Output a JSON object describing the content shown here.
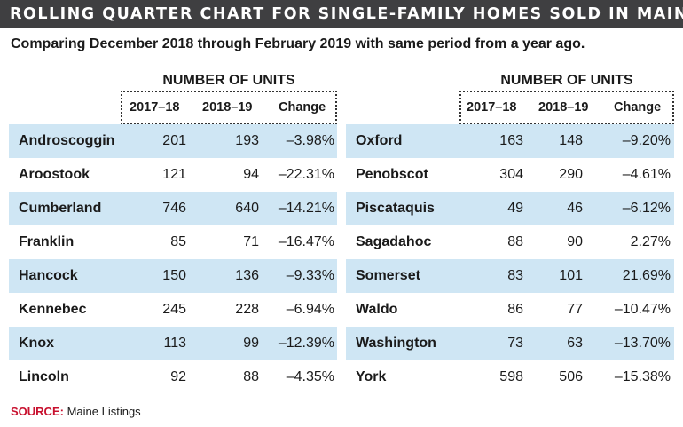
{
  "title": "ROLLING QUARTER CHART FOR SINGLE-FAMILY HOMES SOLD IN MAINE",
  "subtitle": "Comparing December 2018 through February 2019 with same period from a year ago.",
  "source": {
    "label": "SOURCE:",
    "text": "Maine Listings"
  },
  "chart_data": {
    "type": "table",
    "title": "ROLLING QUARTER CHART FOR SINGLE-FAMILY HOMES SOLD IN MAINE",
    "subtitle": "Comparing December 2018 through February 2019 with same period from a year ago.",
    "group_header": "NUMBER OF UNITS",
    "columns": [
      "2017–18",
      "2018–19",
      "Change"
    ],
    "panels": [
      {
        "rows": [
          {
            "county": "Androscoggin",
            "y2017_18": 201,
            "y2018_19": 193,
            "change": "–3.98%"
          },
          {
            "county": "Aroostook",
            "y2017_18": 121,
            "y2018_19": 94,
            "change": "–22.31%"
          },
          {
            "county": "Cumberland",
            "y2017_18": 746,
            "y2018_19": 640,
            "change": "–14.21%"
          },
          {
            "county": "Franklin",
            "y2017_18": 85,
            "y2018_19": 71,
            "change": "–16.47%"
          },
          {
            "county": "Hancock",
            "y2017_18": 150,
            "y2018_19": 136,
            "change": "–9.33%"
          },
          {
            "county": "Kennebec",
            "y2017_18": 245,
            "y2018_19": 228,
            "change": "–6.94%"
          },
          {
            "county": "Knox",
            "y2017_18": 113,
            "y2018_19": 99,
            "change": "–12.39%"
          },
          {
            "county": "Lincoln",
            "y2017_18": 92,
            "y2018_19": 88,
            "change": "–4.35%"
          }
        ]
      },
      {
        "rows": [
          {
            "county": "Oxford",
            "y2017_18": 163,
            "y2018_19": 148,
            "change": "–9.20%"
          },
          {
            "county": "Penobscot",
            "y2017_18": 304,
            "y2018_19": 290,
            "change": "–4.61%"
          },
          {
            "county": "Piscataquis",
            "y2017_18": 49,
            "y2018_19": 46,
            "change": "–6.12%"
          },
          {
            "county": "Sagadahoc",
            "y2017_18": 88,
            "y2018_19": 90,
            "change": "2.27%"
          },
          {
            "county": "Somerset",
            "y2017_18": 83,
            "y2018_19": 101,
            "change": "21.69%"
          },
          {
            "county": "Waldo",
            "y2017_18": 86,
            "y2018_19": 77,
            "change": "–10.47%"
          },
          {
            "county": "Washington",
            "y2017_18": 73,
            "y2018_19": 63,
            "change": "–13.70%"
          },
          {
            "county": "York",
            "y2017_18": 598,
            "y2018_19": 506,
            "change": "–15.38%"
          }
        ]
      }
    ]
  },
  "colors": {
    "title_bar": "#3f3f41",
    "row_shade": "#cfe6f4",
    "source_label": "#c8102e"
  }
}
